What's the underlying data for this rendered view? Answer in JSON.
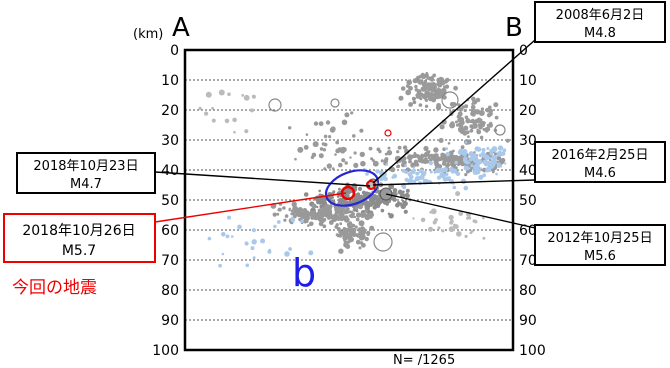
{
  "chart_data": {
    "type": "scatter",
    "unit_label": "(km)",
    "section_start": "A",
    "section_end": "B",
    "y_ticks": [
      0,
      10,
      20,
      30,
      40,
      50,
      60,
      70,
      80,
      90,
      100
    ],
    "ylim": [
      0,
      100
    ],
    "count_label": "N= /1265",
    "region_label": "b",
    "this_event_label": "今回の地震",
    "callouts": [
      {
        "date": "2008年6月2日",
        "mag": "M4.8"
      },
      {
        "date": "2016年2月25日",
        "mag": "M4.6"
      },
      {
        "date": "2018年10月23日",
        "mag": "M4.7"
      },
      {
        "date": "2018年10月26日",
        "mag": "M5.7"
      },
      {
        "date": "2012年10月25日",
        "mag": "M5.6"
      }
    ]
  }
}
